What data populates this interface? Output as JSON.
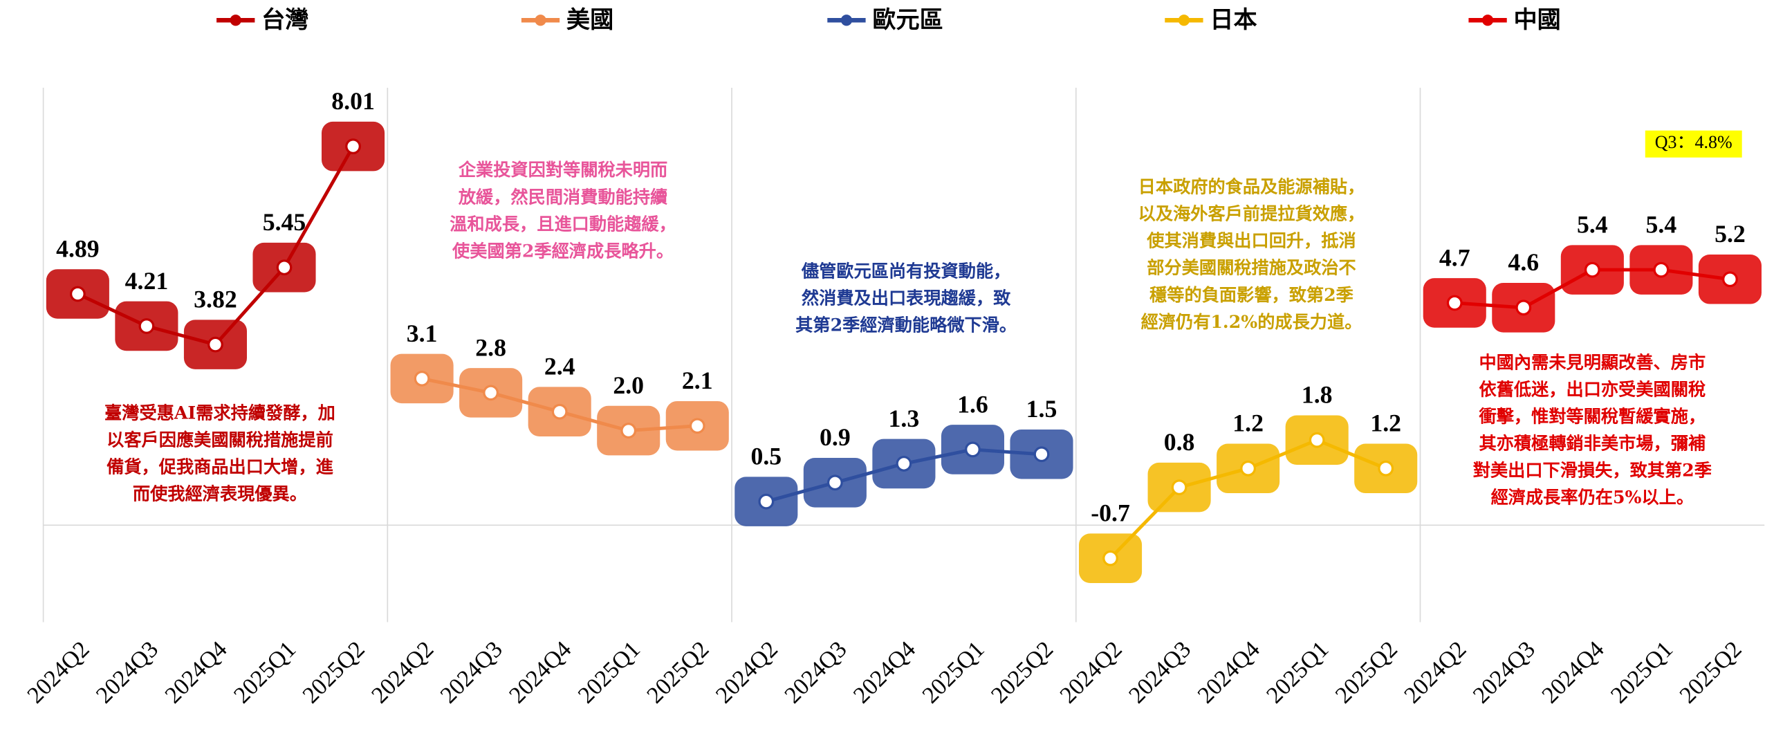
{
  "chart_data": {
    "type": "line",
    "categories": [
      "2024Q2",
      "2024Q3",
      "2024Q4",
      "2025Q1",
      "2025Q2"
    ],
    "ylim": [
      -2.05,
      9.25
    ],
    "yticks": [
      0
    ],
    "grid": true,
    "legend": "top",
    "series": [
      {
        "name": "台灣",
        "color": "#c00000",
        "values": [
          4.89,
          4.21,
          3.82,
          5.45,
          8.01
        ],
        "annotation": [
          "臺灣受惠AI需求持續發酵，加",
          "以客戶因應美國關稅措施提前",
          "備貨，促我商品出口大增，進",
          "而使我經濟表現優異。"
        ],
        "annotation_color": "#c00000"
      },
      {
        "name": "美國",
        "color": "#f08a4b",
        "values": [
          3.1,
          2.8,
          2.4,
          2.0,
          2.1
        ],
        "value_labels": [
          "3.1",
          "2.8",
          "2.4",
          "2.0",
          "2.1"
        ],
        "annotation": [
          "企業投資因對等關稅未明而",
          "放緩，然民間消費動能持續",
          "溫和成長，且進口動能趨緩，",
          "使美國第2季經濟成長略升。"
        ],
        "annotation_color": "#e8559a"
      },
      {
        "name": "歐元區",
        "color": "#2f4f9f",
        "values": [
          0.5,
          0.9,
          1.3,
          1.6,
          1.5
        ],
        "annotation": [
          "儘管歐元區尚有投資動能，",
          "然消費及出口表現趨緩，致",
          "其第2季經濟動能略微下滑。"
        ],
        "annotation_color": "#1f3a93"
      },
      {
        "name": "日本",
        "color": "#f5b800",
        "values": [
          -0.7,
          0.8,
          1.2,
          1.8,
          1.2
        ],
        "annotation": [
          "日本政府的食品及能源補貼，",
          "以及海外客戶前提拉貨效應，",
          "使其消費與出口回升，抵消",
          "部分美國關稅措施及政治不",
          "穩等的負面影響，致第2季",
          "經濟仍有1.2%的成長力道。"
        ],
        "annotation_color": "#c9a000"
      },
      {
        "name": "中國",
        "color": "#e00000",
        "values": [
          4.7,
          4.6,
          5.4,
          5.4,
          5.2
        ],
        "annotation": [
          "中國內需未見明顯改善、房市",
          "依舊低迷，出口亦受美國關稅",
          "衝擊，惟對等關稅暫緩實施，",
          "其亦積極轉銷非美市場，彌補",
          "對美出口下滑損失，致其第2季",
          "經濟成長率仍在5%以上。"
        ],
        "annotation_color": "#e00000",
        "note": "Q3：4.8%"
      }
    ]
  }
}
